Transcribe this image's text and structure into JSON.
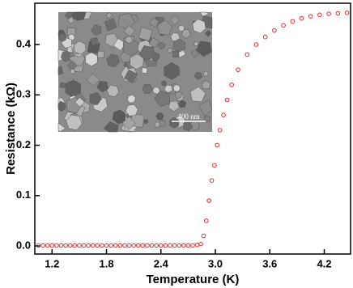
{
  "chart_data": {
    "type": "scatter",
    "xlabel": "Temperature (K)",
    "ylabel": "Resistance (kΩ)",
    "inset_label": "400 nm",
    "xlim": [
      1.01,
      4.49
    ],
    "ylim": [
      -0.016,
      0.482
    ],
    "xticks": [
      1.2,
      1.8,
      2.4,
      {
        "value": 3,
        "label": "3.0"
      },
      3.6,
      4.2
    ],
    "yticks": [
      {
        "value": 0,
        "label": "0.0"
      },
      0.1,
      0.2,
      0.3,
      0.4
    ],
    "color": "#e8262b",
    "x": [
      1.05,
      1.1,
      1.15,
      1.2,
      1.25,
      1.3,
      1.35,
      1.4,
      1.45,
      1.5,
      1.55,
      1.6,
      1.65,
      1.7,
      1.75,
      1.8,
      1.85,
      1.9,
      1.95,
      2.0,
      2.05,
      2.1,
      2.15,
      2.2,
      2.25,
      2.3,
      2.35,
      2.4,
      2.45,
      2.5,
      2.55,
      2.6,
      2.65,
      2.7,
      2.75,
      2.8,
      2.84,
      2.87,
      2.9,
      2.93,
      2.96,
      2.99,
      3.02,
      3.05,
      3.09,
      3.13,
      3.18,
      3.25,
      3.35,
      3.45,
      3.55,
      3.65,
      3.75,
      3.85,
      3.95,
      4.05,
      4.15,
      4.25,
      4.35,
      4.45
    ],
    "values": [
      0.001,
      0.001,
      0.001,
      0.001,
      0.001,
      0.001,
      0.001,
      0.001,
      0.001,
      0.001,
      0.001,
      0.001,
      0.001,
      0.001,
      0.001,
      0.001,
      0.001,
      0.001,
      0.001,
      0.001,
      0.001,
      0.001,
      0.001,
      0.001,
      0.001,
      0.001,
      0.001,
      0.001,
      0.001,
      0.001,
      0.001,
      0.001,
      0.001,
      0.001,
      0.001,
      0.002,
      0.004,
      0.02,
      0.05,
      0.09,
      0.13,
      0.16,
      0.2,
      0.23,
      0.26,
      0.29,
      0.32,
      0.35,
      0.38,
      0.4,
      0.415,
      0.428,
      0.438,
      0.446,
      0.452,
      0.456,
      0.459,
      0.461,
      0.462,
      0.463
    ]
  }
}
